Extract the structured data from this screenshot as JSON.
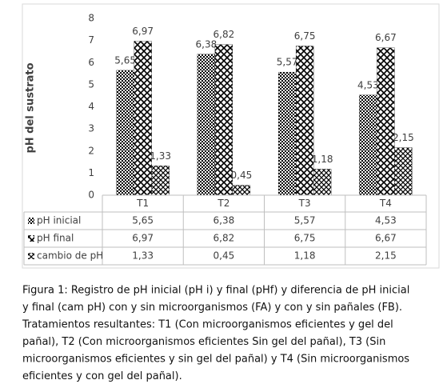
{
  "chart_data": {
    "type": "bar",
    "y_label": "pH del sustrato",
    "categories": [
      "T1",
      "T2",
      "T3",
      "T4"
    ],
    "series": [
      {
        "name": "pH inicial",
        "color": "#000000",
        "values": [
          5.65,
          6.38,
          5.57,
          4.53
        ],
        "value_labels": [
          "5,65",
          "6,38",
          "5,57",
          "4,53"
        ]
      },
      {
        "name": "pH final",
        "color": "#000000",
        "values": [
          6.97,
          6.82,
          6.75,
          6.67
        ],
        "value_labels": [
          "6,97",
          "6,82",
          "6,75",
          "6,67"
        ]
      },
      {
        "name": "cambio de pH",
        "color": "#000000",
        "values": [
          1.33,
          0.45,
          1.18,
          2.15
        ],
        "value_labels": [
          "1,33",
          "0,45",
          "1,18",
          "2,15"
        ]
      }
    ],
    "ylim": [
      0,
      8
    ],
    "yticks": [
      0,
      1,
      2,
      3,
      4,
      5,
      6,
      7,
      8
    ],
    "data_table": true
  },
  "caption": [
    "Figura 1: Registro de pH inicial (pH i) y final (pHf) y diferencia de pH inicial",
    "y final (cam pH) con y sin microorganismos (FA) y con y sin pañales (FB).",
    "Tratamientos resultantes: T1 (Con microorganismos eficientes y gel del",
    "pañal), T2 (Con microorganismos eficientes Sin gel del pañal), T3 (Sin",
    "microorganismos eficientes y sin gel del pañal) y T4 (Sin microorganismos",
    "eficientes y con gel del pañal)."
  ]
}
